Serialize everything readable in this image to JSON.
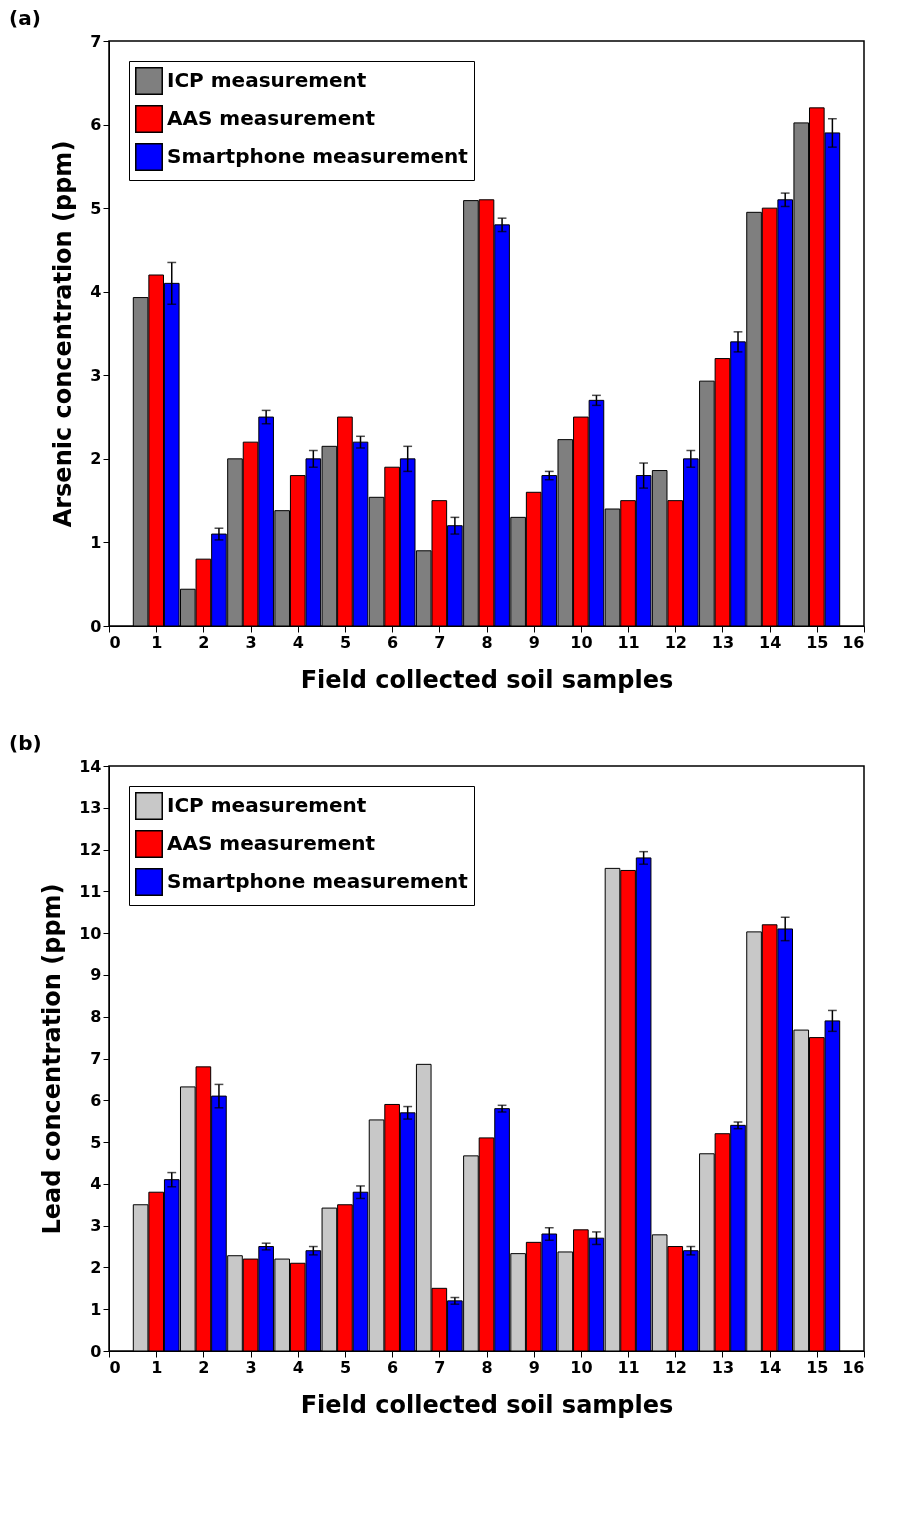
{
  "chart_data": [
    {
      "type": "bar",
      "title": "(a)",
      "xlabel": "Field collected soil samples",
      "ylabel": "Arsenic concentration (ppm)",
      "x": [
        1,
        2,
        3,
        4,
        5,
        6,
        7,
        8,
        9,
        10,
        11,
        12,
        13,
        14,
        15
      ],
      "xlim": [
        0,
        16
      ],
      "xticks": [
        0,
        1,
        2,
        3,
        4,
        5,
        6,
        7,
        8,
        9,
        10,
        11,
        12,
        13,
        14,
        15,
        16
      ],
      "ylim": [
        0,
        7
      ],
      "yticks": [
        0,
        1,
        2,
        3,
        4,
        5,
        6,
        7
      ],
      "legend": "top left",
      "series": [
        {
          "name": "ICP measurement",
          "color": "#7f7f7f",
          "values": [
            3.93,
            0.44,
            2.0,
            1.38,
            2.15,
            1.54,
            0.9,
            5.09,
            1.3,
            2.23,
            1.4,
            1.86,
            2.93,
            4.95,
            6.02
          ]
        },
        {
          "name": "AAS measurement",
          "color": "#ff0000",
          "values": [
            4.2,
            0.8,
            2.2,
            1.8,
            2.5,
            1.9,
            1.5,
            5.1,
            1.6,
            2.5,
            1.5,
            1.5,
            3.2,
            5.0,
            6.2
          ]
        },
        {
          "name": "Smartphone measurement",
          "color": "#0000ff",
          "values": [
            4.1,
            1.1,
            2.5,
            2.0,
            2.2,
            2.0,
            1.2,
            4.8,
            1.8,
            2.7,
            1.8,
            2.0,
            3.4,
            5.1,
            5.9
          ],
          "errors": [
            0.25,
            0.07,
            0.08,
            0.1,
            0.07,
            0.15,
            0.1,
            0.08,
            0.05,
            0.06,
            0.15,
            0.1,
            0.12,
            0.08,
            0.17
          ]
        }
      ]
    },
    {
      "type": "bar",
      "title": "(b)",
      "xlabel": "Field collected soil samples",
      "ylabel": "Lead concentration (ppm)",
      "x": [
        1,
        2,
        3,
        4,
        5,
        6,
        7,
        8,
        9,
        10,
        11,
        12,
        13,
        14,
        15
      ],
      "xlim": [
        0,
        16
      ],
      "xticks": [
        0,
        1,
        2,
        3,
        4,
        5,
        6,
        7,
        8,
        9,
        10,
        11,
        12,
        13,
        14,
        15,
        16
      ],
      "ylim": [
        0,
        14
      ],
      "yticks": [
        0,
        1,
        2,
        3,
        4,
        5,
        6,
        7,
        8,
        9,
        10,
        11,
        12,
        13,
        14
      ],
      "legend": "top left",
      "series": [
        {
          "name": "ICP measurement",
          "color": "#c8c8c8",
          "values": [
            3.5,
            6.32,
            2.28,
            2.2,
            3.42,
            5.53,
            6.86,
            4.67,
            2.33,
            2.37,
            11.55,
            2.78,
            4.72,
            10.03,
            7.68
          ]
        },
        {
          "name": "AAS measurement",
          "color": "#ff0000",
          "values": [
            3.8,
            6.8,
            2.2,
            2.1,
            3.5,
            5.9,
            1.5,
            5.1,
            2.6,
            2.9,
            11.5,
            2.5,
            5.2,
            10.2,
            7.5
          ]
        },
        {
          "name": "Smartphone measurement",
          "color": "#0000ff",
          "values": [
            4.1,
            6.1,
            2.5,
            2.4,
            3.8,
            5.7,
            1.2,
            5.8,
            2.8,
            2.7,
            11.8,
            2.4,
            5.4,
            10.1,
            7.9
          ],
          "errors": [
            0.17,
            0.28,
            0.08,
            0.1,
            0.15,
            0.15,
            0.08,
            0.08,
            0.15,
            0.15,
            0.15,
            0.1,
            0.08,
            0.28,
            0.25
          ]
        }
      ]
    }
  ]
}
